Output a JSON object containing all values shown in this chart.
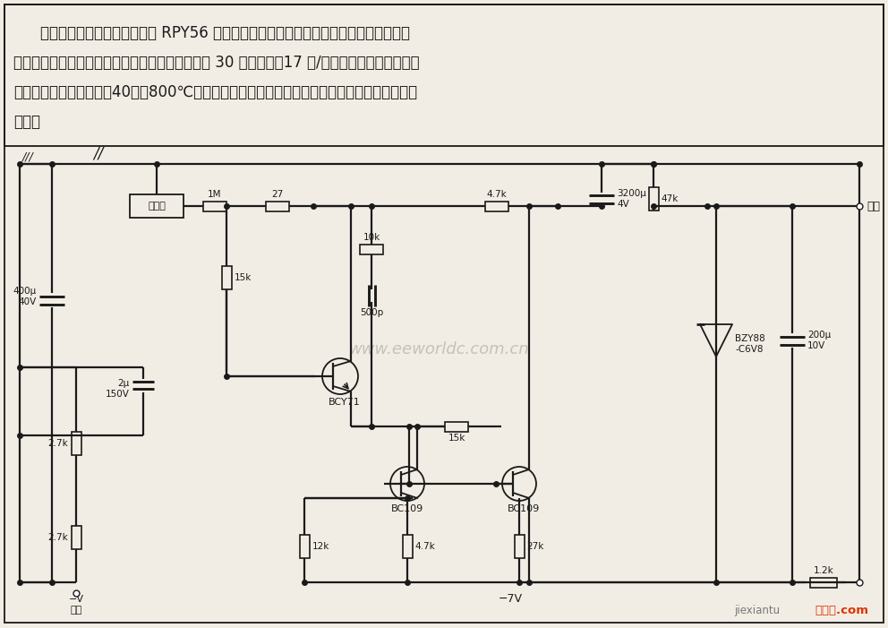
{
  "bg_color": "#f2ede4",
  "line_color": "#1a1a1a",
  "text_color": "#1a1a1a",
  "watermark": "www.eeworldc.com.cn",
  "footer_left": "jiexiantu",
  "footer_right": "接线图.com",
  "desc_line1": "本电路使用了在液氮中冷却的 RPY56 型锔化锄探测器的前置放大器。为了采用廉价的热",
  "desc_line2": "扫描装置，一般使用电动尼普科夫扫描盘，能产生 30 条扫描线，17 帧/秒，在观测过程中覆盖整",
  "desc_line3": "个面积，本电路适用于－40～＋800℃的温度范围。用示波器作为检测器，形成电视系统的闭合",
  "desc_line4": "电路。"
}
